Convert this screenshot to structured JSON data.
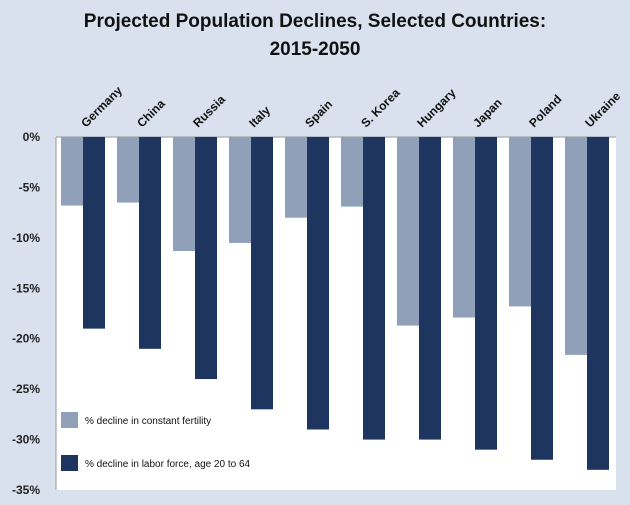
{
  "title": {
    "line1": "Projected Population Declines, Selected Countries:",
    "line2": "2015-2050"
  },
  "chart_data": {
    "type": "bar",
    "title": "Projected Population Declines, Selected Countries: 2015-2050",
    "categories": [
      "Germany",
      "China",
      "Russia",
      "Italy",
      "Spain",
      "S. Korea",
      "Hungary",
      "Japan",
      "Poland",
      "Ukraine"
    ],
    "series": [
      {
        "name": "% decline in constant fertility",
        "color": "#8fa0b8",
        "values": [
          -6.8,
          -6.5,
          -11.3,
          -10.5,
          -8.0,
          -6.9,
          -18.7,
          -17.9,
          -16.8,
          -21.6
        ]
      },
      {
        "name": "% decline in labor force, age 20 to 64",
        "color": "#1e3560",
        "values": [
          -19,
          -21,
          -24,
          -27,
          -29,
          -30,
          -30,
          -31,
          -32,
          -33
        ]
      }
    ],
    "yticks": [
      "0%",
      "-5%",
      "-10%",
      "-15%",
      "-20%",
      "-25%",
      "-30%",
      "-35%"
    ],
    "ylim": [
      -35,
      0
    ],
    "grid": false,
    "legend_position": "bottom-left, inside plot"
  }
}
